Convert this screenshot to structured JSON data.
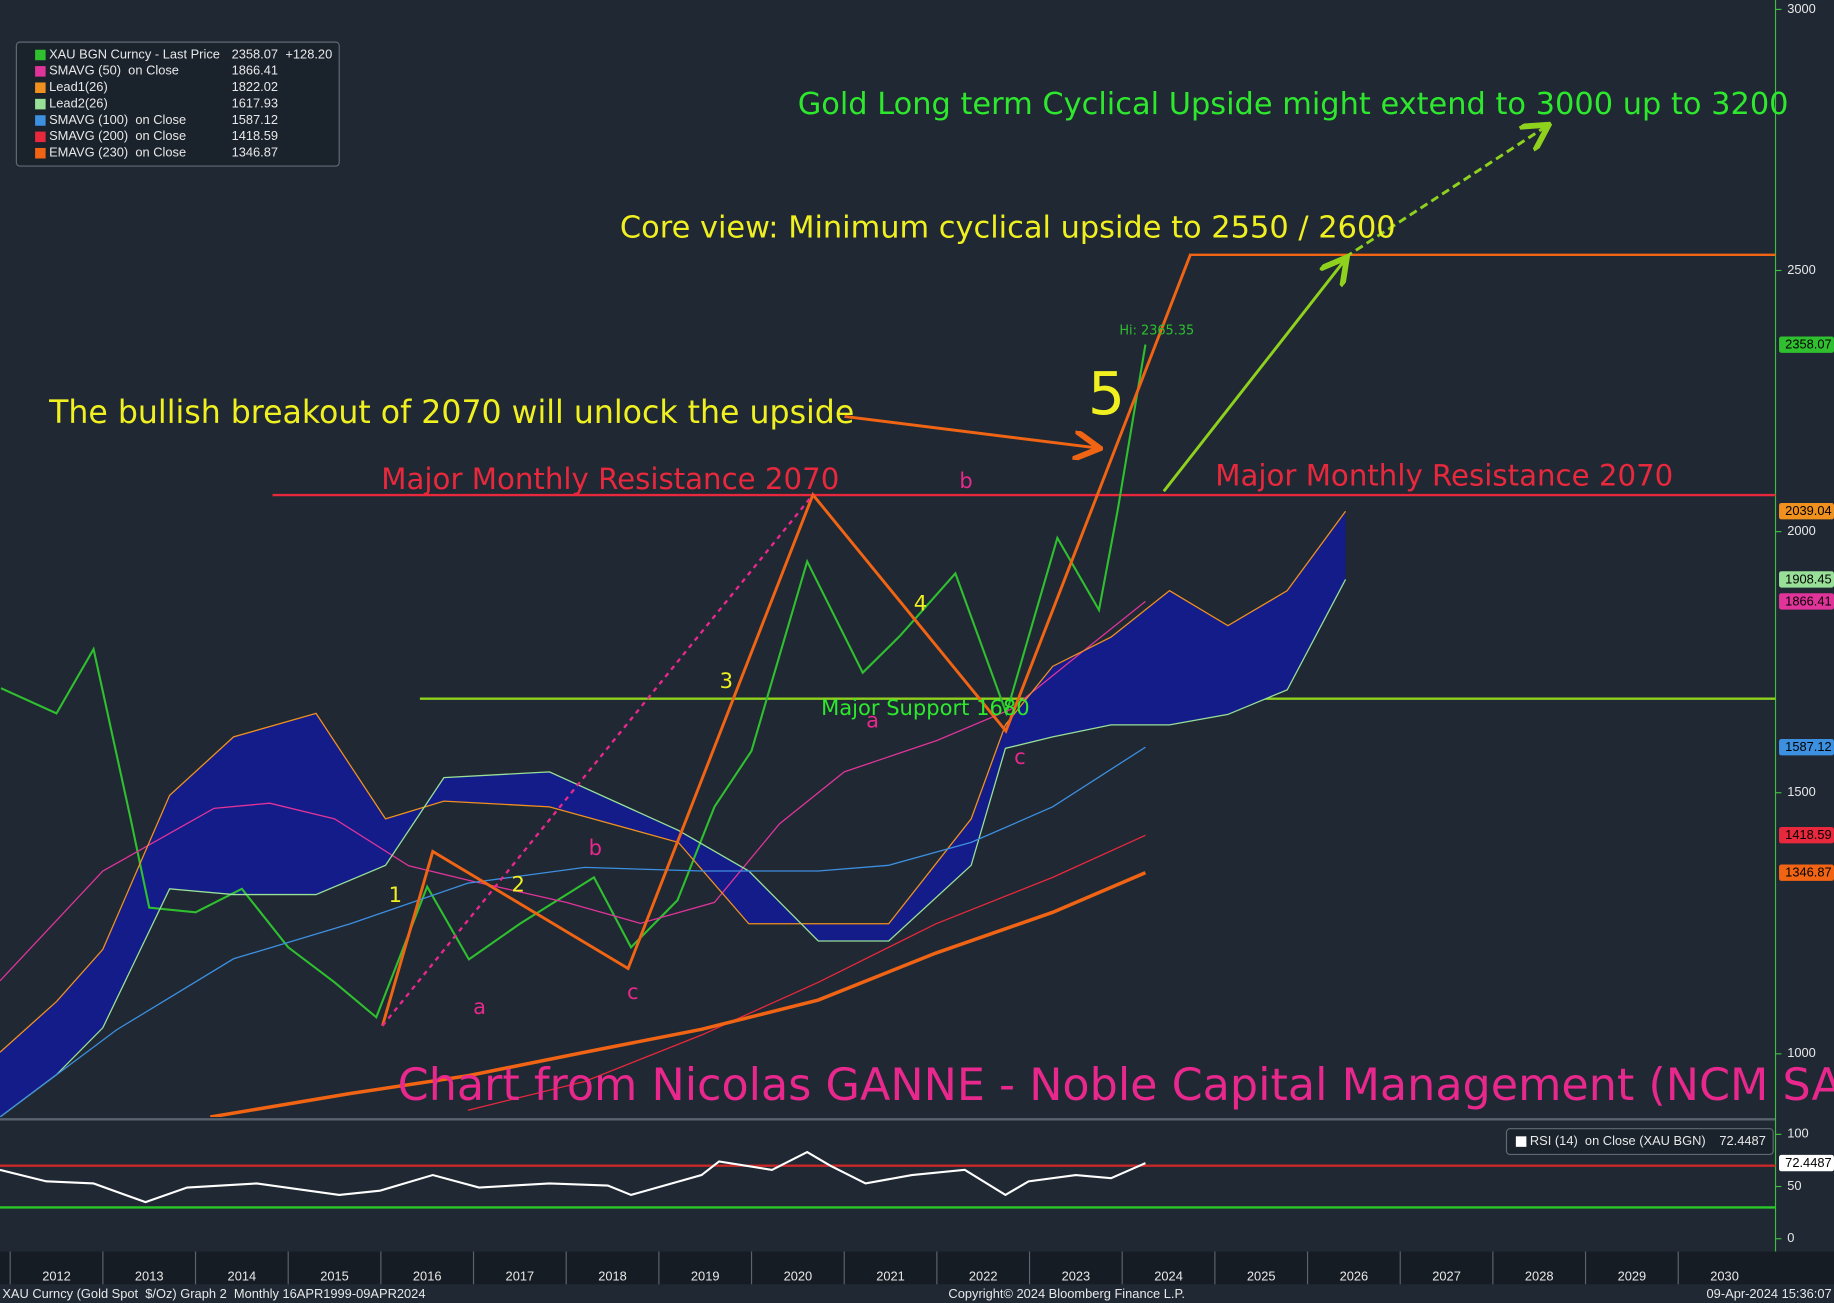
{
  "chart_data": [
    {
      "type": "line",
      "legend": "top-left",
      "xlim": [
        2011.89,
        2031.05
      ],
      "ylim": [
        879,
        3018
      ],
      "xticks": [
        2012,
        2013,
        2014,
        2015,
        2016,
        2017,
        2018,
        2019,
        2020,
        2021,
        2022,
        2023,
        2024,
        2025,
        2026,
        2027,
        2028,
        2029,
        2030
      ],
      "yticks": [
        1000,
        1500,
        2000,
        2500,
        3000
      ],
      "series": [
        {
          "name": "XAU BGN Curncy - Last Price",
          "color": "#2fbf2f",
          "change": "+128.20",
          "tag": true,
          "x": [
            2011.9,
            2012.5,
            2012.9,
            2013.3,
            2013.5,
            2014,
            2014.5,
            2015,
            2015.5,
            2015.95,
            2016.5,
            2016.95,
            2017.5,
            2018.3,
            2018.7,
            2019.2,
            2019.6,
            2020,
            2020.6,
            2021.2,
            2021.6,
            2022.2,
            2022.75,
            2023.3,
            2023.75,
            2023.95,
            2024.25
          ],
          "values": [
            1700,
            1652,
            1775,
            1450,
            1280,
            1271,
            1316,
            1204,
            1137,
            1070,
            1320,
            1181,
            1249,
            1338,
            1204,
            1294,
            1473,
            1580,
            1943,
            1730,
            1800,
            1920,
            1652,
            1988,
            1850,
            2040,
            2358.07
          ]
        },
        {
          "name": "SMAVG (50)  on Close",
          "color": "#e0349a",
          "tag": true,
          "x": [
            2011.89,
            2013,
            2014.2,
            2014.8,
            2015.5,
            2016.3,
            2017,
            2018,
            2018.8,
            2019.6,
            2020.3,
            2021,
            2022,
            2022.8,
            2023.5,
            2024.25
          ],
          "values": [
            1140,
            1350,
            1470,
            1480,
            1450,
            1360,
            1330,
            1290,
            1250,
            1290,
            1440,
            1540,
            1600,
            1660,
            1760,
            1866.41
          ]
        },
        {
          "name": "Lead1(26)",
          "color": "#f0901e",
          "legend_value": 1822.02,
          "tag": true,
          "x": [
            2011.89,
            2012.5,
            2013.0,
            2013.72,
            2014.41,
            2015.3,
            2016.05,
            2016.68,
            2017.82,
            2019.21,
            2019.97,
            2020.72,
            2021.48,
            2022.37,
            2022.74,
            2023.25,
            2023.88,
            2024.51,
            2025.14,
            2025.78,
            2026.41
          ],
          "values": [
            1003,
            1100,
            1200,
            1495,
            1607,
            1652,
            1450,
            1484,
            1473,
            1405,
            1249,
            1249,
            1249,
            1450,
            1630,
            1742,
            1798,
            1887,
            1820,
            1887,
            2039.04
          ]
        },
        {
          "name": "Lead2(26)",
          "color": "#98e098",
          "legend_value": 1617.93,
          "tag": true,
          "x": [
            2011.89,
            2012.5,
            2013.0,
            2013.72,
            2014.41,
            2015.3,
            2016.05,
            2016.68,
            2017.82,
            2019.21,
            2019.97,
            2020.72,
            2021.48,
            2022.37,
            2022.74,
            2023.25,
            2023.88,
            2024.51,
            2025.14,
            2025.78,
            2026.41
          ],
          "values": [
            879,
            960,
            1050,
            1316,
            1305,
            1305,
            1361,
            1529,
            1540,
            1428,
            1350,
            1216,
            1216,
            1361,
            1585,
            1607,
            1630,
            1630,
            1650,
            1697,
            1908.45
          ]
        },
        {
          "name": "SMAVG (100)  on Close",
          "color": "#3d8fe0",
          "tag": true,
          "x": [
            2011.89,
            2013.15,
            2014.41,
            2015.67,
            2016.94,
            2018.2,
            2019.46,
            2020.72,
            2021.48,
            2022.37,
            2023.25,
            2024.25
          ],
          "values": [
            879,
            1046,
            1182,
            1249,
            1327,
            1357,
            1350,
            1350,
            1361,
            1405,
            1473,
            1587.12
          ]
        },
        {
          "name": "SMAVG (200)  on Close",
          "color": "#e8283c",
          "tag": true,
          "x": [
            2016.94,
            2018.2,
            2019.46,
            2020.72,
            2021.99,
            2023.25,
            2024.25
          ],
          "values": [
            892,
            947,
            1036,
            1137,
            1249,
            1338,
            1418.59
          ]
        },
        {
          "name": "EMAVG (230)  on Close",
          "color": "#f06414",
          "width": 3,
          "tag": true,
          "x": [
            2014.16,
            2015.67,
            2016.94,
            2018.2,
            2019.46,
            2020.72,
            2021.99,
            2023.25,
            2024.25
          ],
          "values": [
            879,
            924,
            958,
            1003,
            1047,
            1103,
            1193,
            1271,
            1346.87
          ]
        }
      ],
      "cloud": {
        "series": [
          2,
          3
        ],
        "color": "#141c8a"
      },
      "hlines": [
        {
          "value": 2070,
          "color": "#e8283c"
        },
        {
          "value": 1680,
          "color": "#8fd21e"
        },
        {
          "value": 2530,
          "color": "#f06414"
        }
      ],
      "annotations": [
        {
          "text": "Gold Long term Cyclical Upside might extend to 3000 up to 3200",
          "color": "#2ee82e"
        },
        {
          "text": "Core view: Minimum cyclical upside to 2550 / 2600",
          "color": "#f0f020"
        },
        {
          "text": "The bullish breakout of 2070 will unlock the upside",
          "color": "#f0f020"
        },
        {
          "text": "Major Monthly Resistance 2070",
          "color": "#e8283c"
        },
        {
          "text": "Major Monthly Resistance 2070",
          "color": "#e8283c"
        },
        {
          "text": "Major Support 1680",
          "color": "#2ee82e"
        },
        {
          "text": "5",
          "color": "#f0f020"
        },
        {
          "text": "3",
          "color": "#f0f020"
        },
        {
          "text": "4",
          "color": "#f0f020"
        },
        {
          "text": "1",
          "color": "#f0f020"
        },
        {
          "text": "2",
          "color": "#f0f020"
        },
        {
          "text": "b",
          "color": "#e8288c"
        },
        {
          "text": "a",
          "color": "#e8288c"
        },
        {
          "text": "c",
          "color": "#e8288c"
        },
        {
          "text": "b",
          "color": "#e8288c"
        },
        {
          "text": "a",
          "color": "#e8288c"
        },
        {
          "text": "c",
          "color": "#e8288c"
        },
        {
          "text": "Hi: 2365.35",
          "color": "#2ebf2e"
        },
        {
          "text": "Chart from Nicolas GANNE - Noble Capital Management (NCM SA)",
          "color": "#e8288c"
        }
      ],
      "footer": [
        "XAU Curncy (Gold Spot  $/Oz) Graph 2  Monthly 16APR1999-09APR2024",
        "Copyright© 2024 Bloomberg Finance L.P.",
        "09-Apr-2024 15:36:07"
      ]
    },
    {
      "type": "line",
      "legend": "top-right",
      "xlim": [
        2011.89,
        2031.05
      ],
      "ylim": [
        -10,
        111
      ],
      "yticks": [
        0,
        50,
        100
      ],
      "hlines": [
        {
          "value": 70,
          "color": "#c82828"
        },
        {
          "value": 30,
          "color": "#28c828"
        }
      ],
      "series": [
        {
          "name": "RSI (14)  on Close (XAU BGN)",
          "color": "#ffffff",
          "tag": true,
          "x": [
            2011.89,
            2012.39,
            2012.9,
            2013.46,
            2013.91,
            2014.66,
            2015.55,
            2015.99,
            2016.56,
            2017.06,
            2017.82,
            2018.45,
            2018.7,
            2019.46,
            2019.65,
            2020.22,
            2020.6,
            2020.85,
            2021.23,
            2021.73,
            2022.3,
            2022.74,
            2022.99,
            2023.5,
            2023.88,
            2024.25
          ],
          "values": [
            66,
            55,
            53,
            35,
            49,
            53,
            42,
            46,
            61,
            49,
            53,
            51,
            42,
            61,
            74,
            66,
            83,
            70,
            53,
            61,
            66,
            42,
            55,
            61,
            58,
            72.4487
          ]
        }
      ]
    }
  ]
}
